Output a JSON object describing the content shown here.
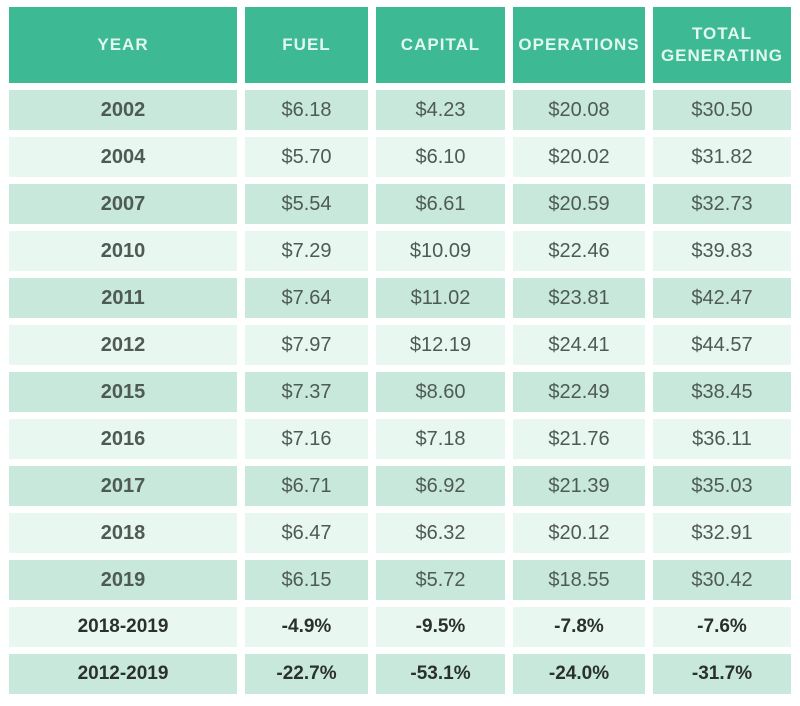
{
  "chart_data": {
    "type": "table",
    "columns": [
      "YEAR",
      "FUEL",
      "CAPITAL",
      "OPERATIONS",
      "TOTAL GENERATING"
    ],
    "rows": [
      [
        "2002",
        6.18,
        4.23,
        20.08,
        30.5
      ],
      [
        "2004",
        5.7,
        6.1,
        20.02,
        31.82
      ],
      [
        "2007",
        5.54,
        6.61,
        20.59,
        32.73
      ],
      [
        "2010",
        7.29,
        10.09,
        22.46,
        39.83
      ],
      [
        "2011",
        7.64,
        11.02,
        23.81,
        42.47
      ],
      [
        "2012",
        7.97,
        12.19,
        24.41,
        44.57
      ],
      [
        "2015",
        7.37,
        8.6,
        22.49,
        38.45
      ],
      [
        "2016",
        7.16,
        7.18,
        21.76,
        36.11
      ],
      [
        "2017",
        6.71,
        6.92,
        21.39,
        35.03
      ],
      [
        "2018",
        6.47,
        6.32,
        20.12,
        32.91
      ],
      [
        "2019",
        6.15,
        5.72,
        18.55,
        30.42
      ],
      [
        "2018-2019",
        "-4.9%",
        "-9.5%",
        "-7.8%",
        "-7.6%"
      ],
      [
        "2012-2019",
        "-22.7%",
        "-53.1%",
        "-24.0%",
        "-31.7%"
      ]
    ]
  },
  "table": {
    "header": [
      "YEAR",
      "FUEL",
      "CAPITAL",
      "OPERATIONS",
      "TOTAL GENERATING"
    ],
    "rows": [
      {
        "year": "2002",
        "fuel": "$6.18",
        "capital": "$4.23",
        "operations": "$20.08",
        "total": "$30.50"
      },
      {
        "year": "2004",
        "fuel": "$5.70",
        "capital": "$6.10",
        "operations": "$20.02",
        "total": "$31.82"
      },
      {
        "year": "2007",
        "fuel": "$5.54",
        "capital": "$6.61",
        "operations": "$20.59",
        "total": "$32.73"
      },
      {
        "year": "2010",
        "fuel": "$7.29",
        "capital": "$10.09",
        "operations": "$22.46",
        "total": "$39.83"
      },
      {
        "year": "2011",
        "fuel": "$7.64",
        "capital": "$11.02",
        "operations": "$23.81",
        "total": "$42.47"
      },
      {
        "year": "2012",
        "fuel": "$7.97",
        "capital": "$12.19",
        "operations": "$24.41",
        "total": "$44.57"
      },
      {
        "year": "2015",
        "fuel": "$7.37",
        "capital": "$8.60",
        "operations": "$22.49",
        "total": "$38.45"
      },
      {
        "year": "2016",
        "fuel": "$7.16",
        "capital": "$7.18",
        "operations": "$21.76",
        "total": "$36.11"
      },
      {
        "year": "2017",
        "fuel": "$6.71",
        "capital": "$6.92",
        "operations": "$21.39",
        "total": "$35.03"
      },
      {
        "year": "2018",
        "fuel": "$6.47",
        "capital": "$6.32",
        "operations": "$20.12",
        "total": "$32.91"
      },
      {
        "year": "2019",
        "fuel": "$6.15",
        "capital": "$5.72",
        "operations": "$18.55",
        "total": "$30.42"
      },
      {
        "year": "2018-2019",
        "fuel": "-4.9%",
        "capital": "-9.5%",
        "operations": "-7.8%",
        "total": "-7.6%",
        "bold": true
      },
      {
        "year": "2012-2019",
        "fuel": "-22.7%",
        "capital": "-53.1%",
        "operations": "-24.0%",
        "total": "-31.7%",
        "bold": true
      }
    ],
    "colors": {
      "accent": "#3dba94",
      "header_text": "#e2f8ef",
      "row_mint": "#c8e8dc",
      "row_light": "#e9f7f1",
      "gap": "#ffffff",
      "text": "#4e5a55",
      "text_bold": "#2b302e"
    }
  }
}
